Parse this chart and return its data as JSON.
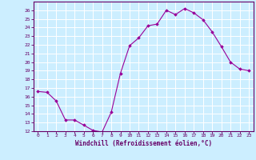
{
  "x": [
    0,
    1,
    2,
    3,
    4,
    5,
    6,
    7,
    8,
    9,
    10,
    11,
    12,
    13,
    14,
    15,
    16,
    17,
    18,
    19,
    20,
    21,
    22,
    23
  ],
  "y": [
    16.6,
    16.5,
    15.5,
    13.3,
    13.3,
    12.7,
    12.1,
    11.9,
    14.2,
    18.7,
    21.9,
    22.8,
    24.2,
    24.4,
    26.0,
    25.5,
    26.2,
    25.7,
    24.9,
    23.5,
    21.8,
    20.0,
    19.2,
    19.0
  ],
  "xlabel": "Windchill (Refroidissement éolien,°C)",
  "ylim": [
    12,
    27
  ],
  "xlim_min": -0.5,
  "xlim_max": 23.5,
  "yticks": [
    12,
    13,
    14,
    15,
    16,
    17,
    18,
    19,
    20,
    21,
    22,
    23,
    24,
    25,
    26
  ],
  "xticks": [
    0,
    1,
    2,
    3,
    4,
    5,
    6,
    7,
    8,
    9,
    10,
    11,
    12,
    13,
    14,
    15,
    16,
    17,
    18,
    19,
    20,
    21,
    22,
    23
  ],
  "line_color": "#990099",
  "marker_color": "#990099",
  "bg_color": "#cceeff",
  "grid_color": "#ffffff",
  "tick_label_color": "#660066",
  "xlabel_color": "#660066",
  "spine_color": "#660066",
  "figsize": [
    3.2,
    2.0
  ],
  "dpi": 100
}
